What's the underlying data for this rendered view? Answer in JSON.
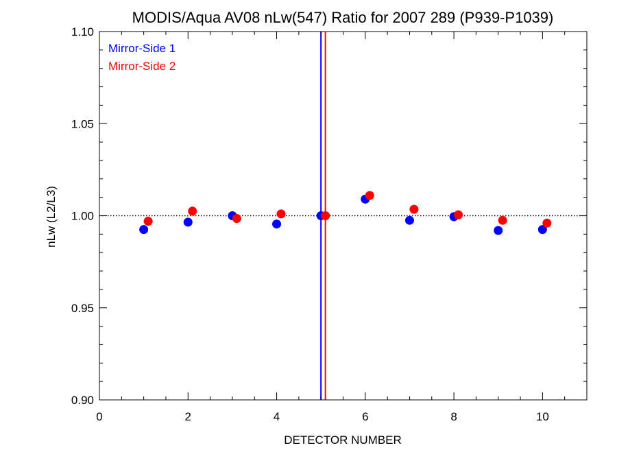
{
  "chart_data": {
    "type": "scatter",
    "title": "MODIS/Aqua AV08 nLw(547) Ratio for 2007 289 (P939-P1039)",
    "xlabel": "DETECTOR NUMBER",
    "ylabel": "nLw (L2/L3)",
    "xlim": [
      0,
      11
    ],
    "ylim": [
      0.9,
      1.1
    ],
    "x_ticks": [
      0,
      2,
      4,
      6,
      8,
      10
    ],
    "x_tick_labels": [
      "0",
      "2",
      "4",
      "6",
      "8",
      "10"
    ],
    "y_ticks": [
      0.9,
      0.95,
      1.0,
      1.05,
      1.1
    ],
    "y_tick_labels": [
      "0.90",
      "0.95",
      "1.00",
      "1.05",
      "1.10"
    ],
    "reference_line": {
      "y": 1.0,
      "style": "dotted"
    },
    "vertical_lines": [
      {
        "x": 5.0,
        "color": "#0000ff"
      },
      {
        "x": 5.1,
        "color": "#ff0000"
      }
    ],
    "legend_position": "top-left",
    "series": [
      {
        "name": "Mirror-Side 1",
        "color": "#0000ff",
        "x": [
          1,
          2,
          3,
          4,
          5,
          6,
          7,
          8,
          9,
          10
        ],
        "y": [
          0.9925,
          0.9965,
          1.0,
          0.9955,
          1.0,
          1.009,
          0.9975,
          0.9995,
          0.992,
          0.9925
        ]
      },
      {
        "name": "Mirror-Side 2",
        "color": "#ff0000",
        "x": [
          1.1,
          2.1,
          3.1,
          4.1,
          5.1,
          6.1,
          7.1,
          8.1,
          9.1,
          10.1
        ],
        "y": [
          0.997,
          1.0025,
          0.9985,
          1.001,
          1.0,
          1.011,
          1.0035,
          1.0005,
          0.9975,
          0.996
        ]
      }
    ]
  }
}
